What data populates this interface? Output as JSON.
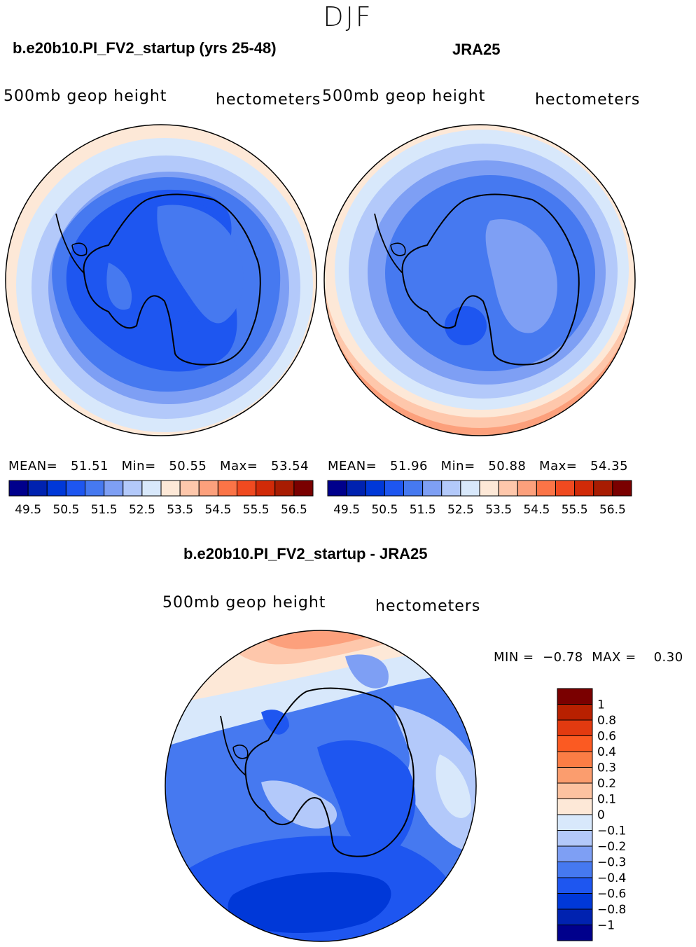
{
  "season": "DJF",
  "panels": [
    {
      "id": "model",
      "title": "b.e20b10.PI_FV2_startup (yrs 25-48)",
      "variable": "500mb geop height",
      "units": "hectometers",
      "stats": {
        "mean_label": "MEAN=",
        "mean": "51.51",
        "min_label": "Min=",
        "min": "50.55",
        "max_label": "Max=",
        "max": "53.54"
      }
    },
    {
      "id": "obs",
      "title": "JRA25",
      "variable": "500mb geop height",
      "units": "hectometers",
      "stats": {
        "mean_label": "MEAN=",
        "mean": "51.96",
        "min_label": "Min=",
        "min": "50.88",
        "max_label": "Max=",
        "max": "54.35"
      }
    }
  ],
  "colorbar": {
    "colors": [
      "#00008c",
      "#0022b0",
      "#0038d8",
      "#1e56f0",
      "#4679f0",
      "#7e9ff4",
      "#b3c9fa",
      "#d8e8fb",
      "#fde8d7",
      "#fec7ab",
      "#fca07c",
      "#fb7447",
      "#f04a20",
      "#d12a08",
      "#a81c02",
      "#7a0000"
    ],
    "tick_labels": [
      "49.5",
      "50.5",
      "51.5",
      "52.5",
      "53.5",
      "54.5",
      "55.5",
      "56.5"
    ]
  },
  "difference": {
    "title": "b.e20b10.PI_FV2_startup - JRA25",
    "variable": "500mb geop height",
    "units": "hectometers",
    "min_label": "MIN =",
    "min": "−0.78",
    "max_label": "MAX =",
    "max": "0.30",
    "colorbar": {
      "colors_top_to_bottom": [
        "#7a0000",
        "#b82000",
        "#e23a10",
        "#fb5a22",
        "#fb7d45",
        "#fb9d6e",
        "#fdc2a0",
        "#fde8d7",
        "#d8e8fb",
        "#b3c9fa",
        "#7e9ff4",
        "#4679f0",
        "#1e56f0",
        "#0038d8",
        "#0022b0",
        "#00008c"
      ],
      "levels_top_to_bottom": [
        "1",
        "0.8",
        "0.6",
        "0.4",
        "0.3",
        "0.2",
        "0.1",
        "0",
        "−0.1",
        "−0.2",
        "−0.3",
        "−0.4",
        "−0.6",
        "−0.8",
        "−1"
      ]
    }
  }
}
